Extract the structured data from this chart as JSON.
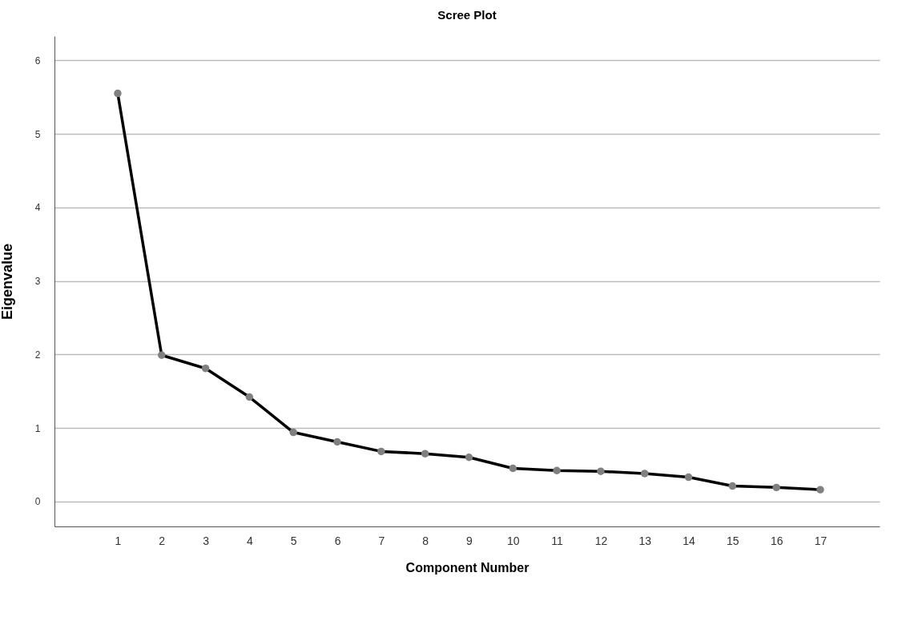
{
  "chart_data": {
    "type": "line",
    "title": "Scree Plot",
    "xlabel": "Component Number",
    "ylabel": "Eigenvalue",
    "x": [
      1,
      2,
      3,
      4,
      5,
      6,
      7,
      8,
      9,
      10,
      11,
      12,
      13,
      14,
      15,
      16,
      17
    ],
    "series": [
      {
        "color": "#000000",
        "colors": [
          "#808080",
          "#808080",
          "#808080",
          "#808080",
          "#808080",
          "#808080",
          "#808080",
          "#808080",
          "#808080",
          "#808080",
          "#808080",
          "#808080",
          "#808080",
          "#808080",
          "#808080",
          "#808080",
          "#808080"
        ],
        "values": [
          5.55,
          1.99,
          1.81,
          1.42,
          0.94,
          0.81,
          0.68,
          0.65,
          0.6,
          0.45,
          0.42,
          0.41,
          0.38,
          0.33,
          0.21,
          0.19,
          0.16
        ]
      }
    ],
    "xlim": [
      -0.44,
      18.35
    ],
    "xticks": [
      1,
      2,
      3,
      4,
      5,
      6,
      7,
      8,
      9,
      10,
      11,
      12,
      13,
      14,
      15,
      16,
      17
    ],
    "ylim": [
      -0.34,
      6.33
    ],
    "yticks": [
      0,
      1,
      2,
      3,
      4,
      5,
      6
    ],
    "grid": "y",
    "marker": "circle",
    "line_style": "solid"
  }
}
